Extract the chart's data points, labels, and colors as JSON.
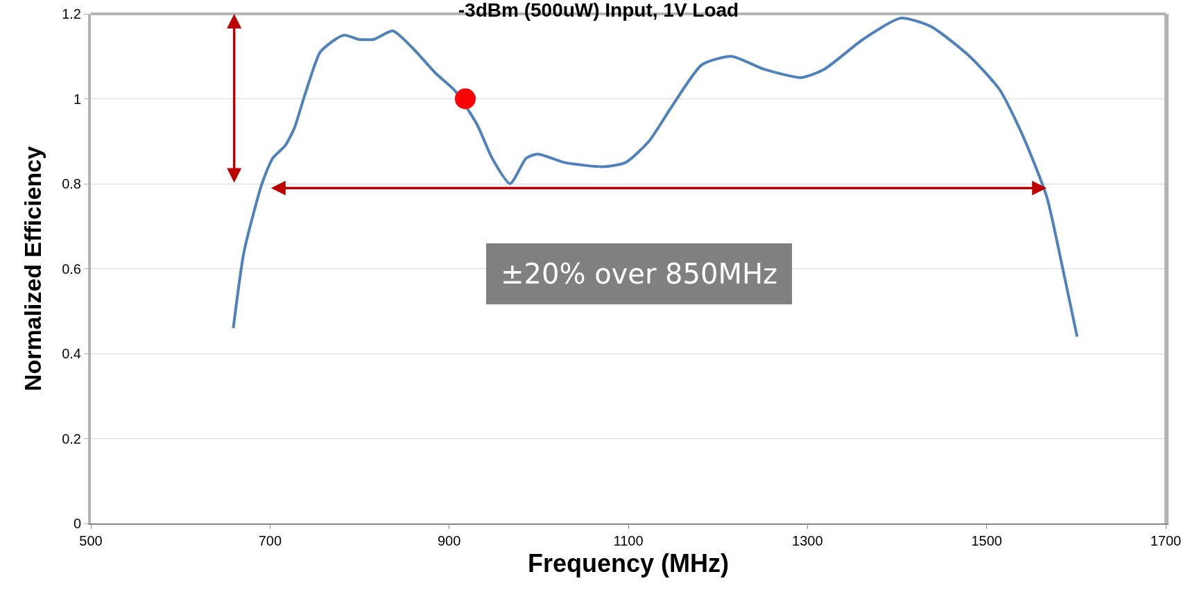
{
  "chart_data": {
    "type": "line",
    "title": "-3dBm (500uW) Input, 1V Load",
    "xlabel": "Frequency (MHz)",
    "ylabel": "Normalized Efficiency",
    "xlim": [
      500,
      1700
    ],
    "xticks": [
      500,
      700,
      900,
      1100,
      1300,
      1500,
      1700
    ],
    "ylim": [
      0,
      1.2
    ],
    "yticks": [
      0,
      0.2,
      0.4,
      0.6,
      0.8,
      1,
      1.2
    ],
    "grid": "y",
    "line_style": "solid",
    "annotations": [
      "±20% over 850MHz"
    ],
    "series": [
      {
        "color": "#4f81bd",
        "x": [
          659,
          671,
          691,
          703,
          717,
          727,
          739,
          756,
          773,
          783,
          799,
          816,
          837,
          859,
          885,
          906,
          931,
          948,
          968,
          986,
          999,
          1029,
          1072,
          1097,
          1123,
          1148,
          1182,
          1215,
          1251,
          1293,
          1319,
          1362,
          1404,
          1438,
          1481,
          1515,
          1541,
          1567,
          1584,
          1601
        ],
        "values": [
          0.46,
          0.64,
          0.8,
          0.86,
          0.89,
          0.93,
          1.01,
          1.11,
          1.14,
          1.15,
          1.14,
          1.14,
          1.16,
          1.12,
          1.06,
          1.02,
          0.94,
          0.86,
          0.8,
          0.86,
          0.87,
          0.85,
          0.84,
          0.85,
          0.9,
          0.98,
          1.08,
          1.1,
          1.07,
          1.05,
          1.07,
          1.14,
          1.19,
          1.17,
          1.1,
          1.02,
          0.91,
          0.77,
          0.61,
          0.44
        ]
      },
      {
        "type": "scatter",
        "marker": "circle",
        "color": "#ff0000",
        "x": [
          918
        ],
        "values": [
          1
        ]
      }
    ]
  }
}
